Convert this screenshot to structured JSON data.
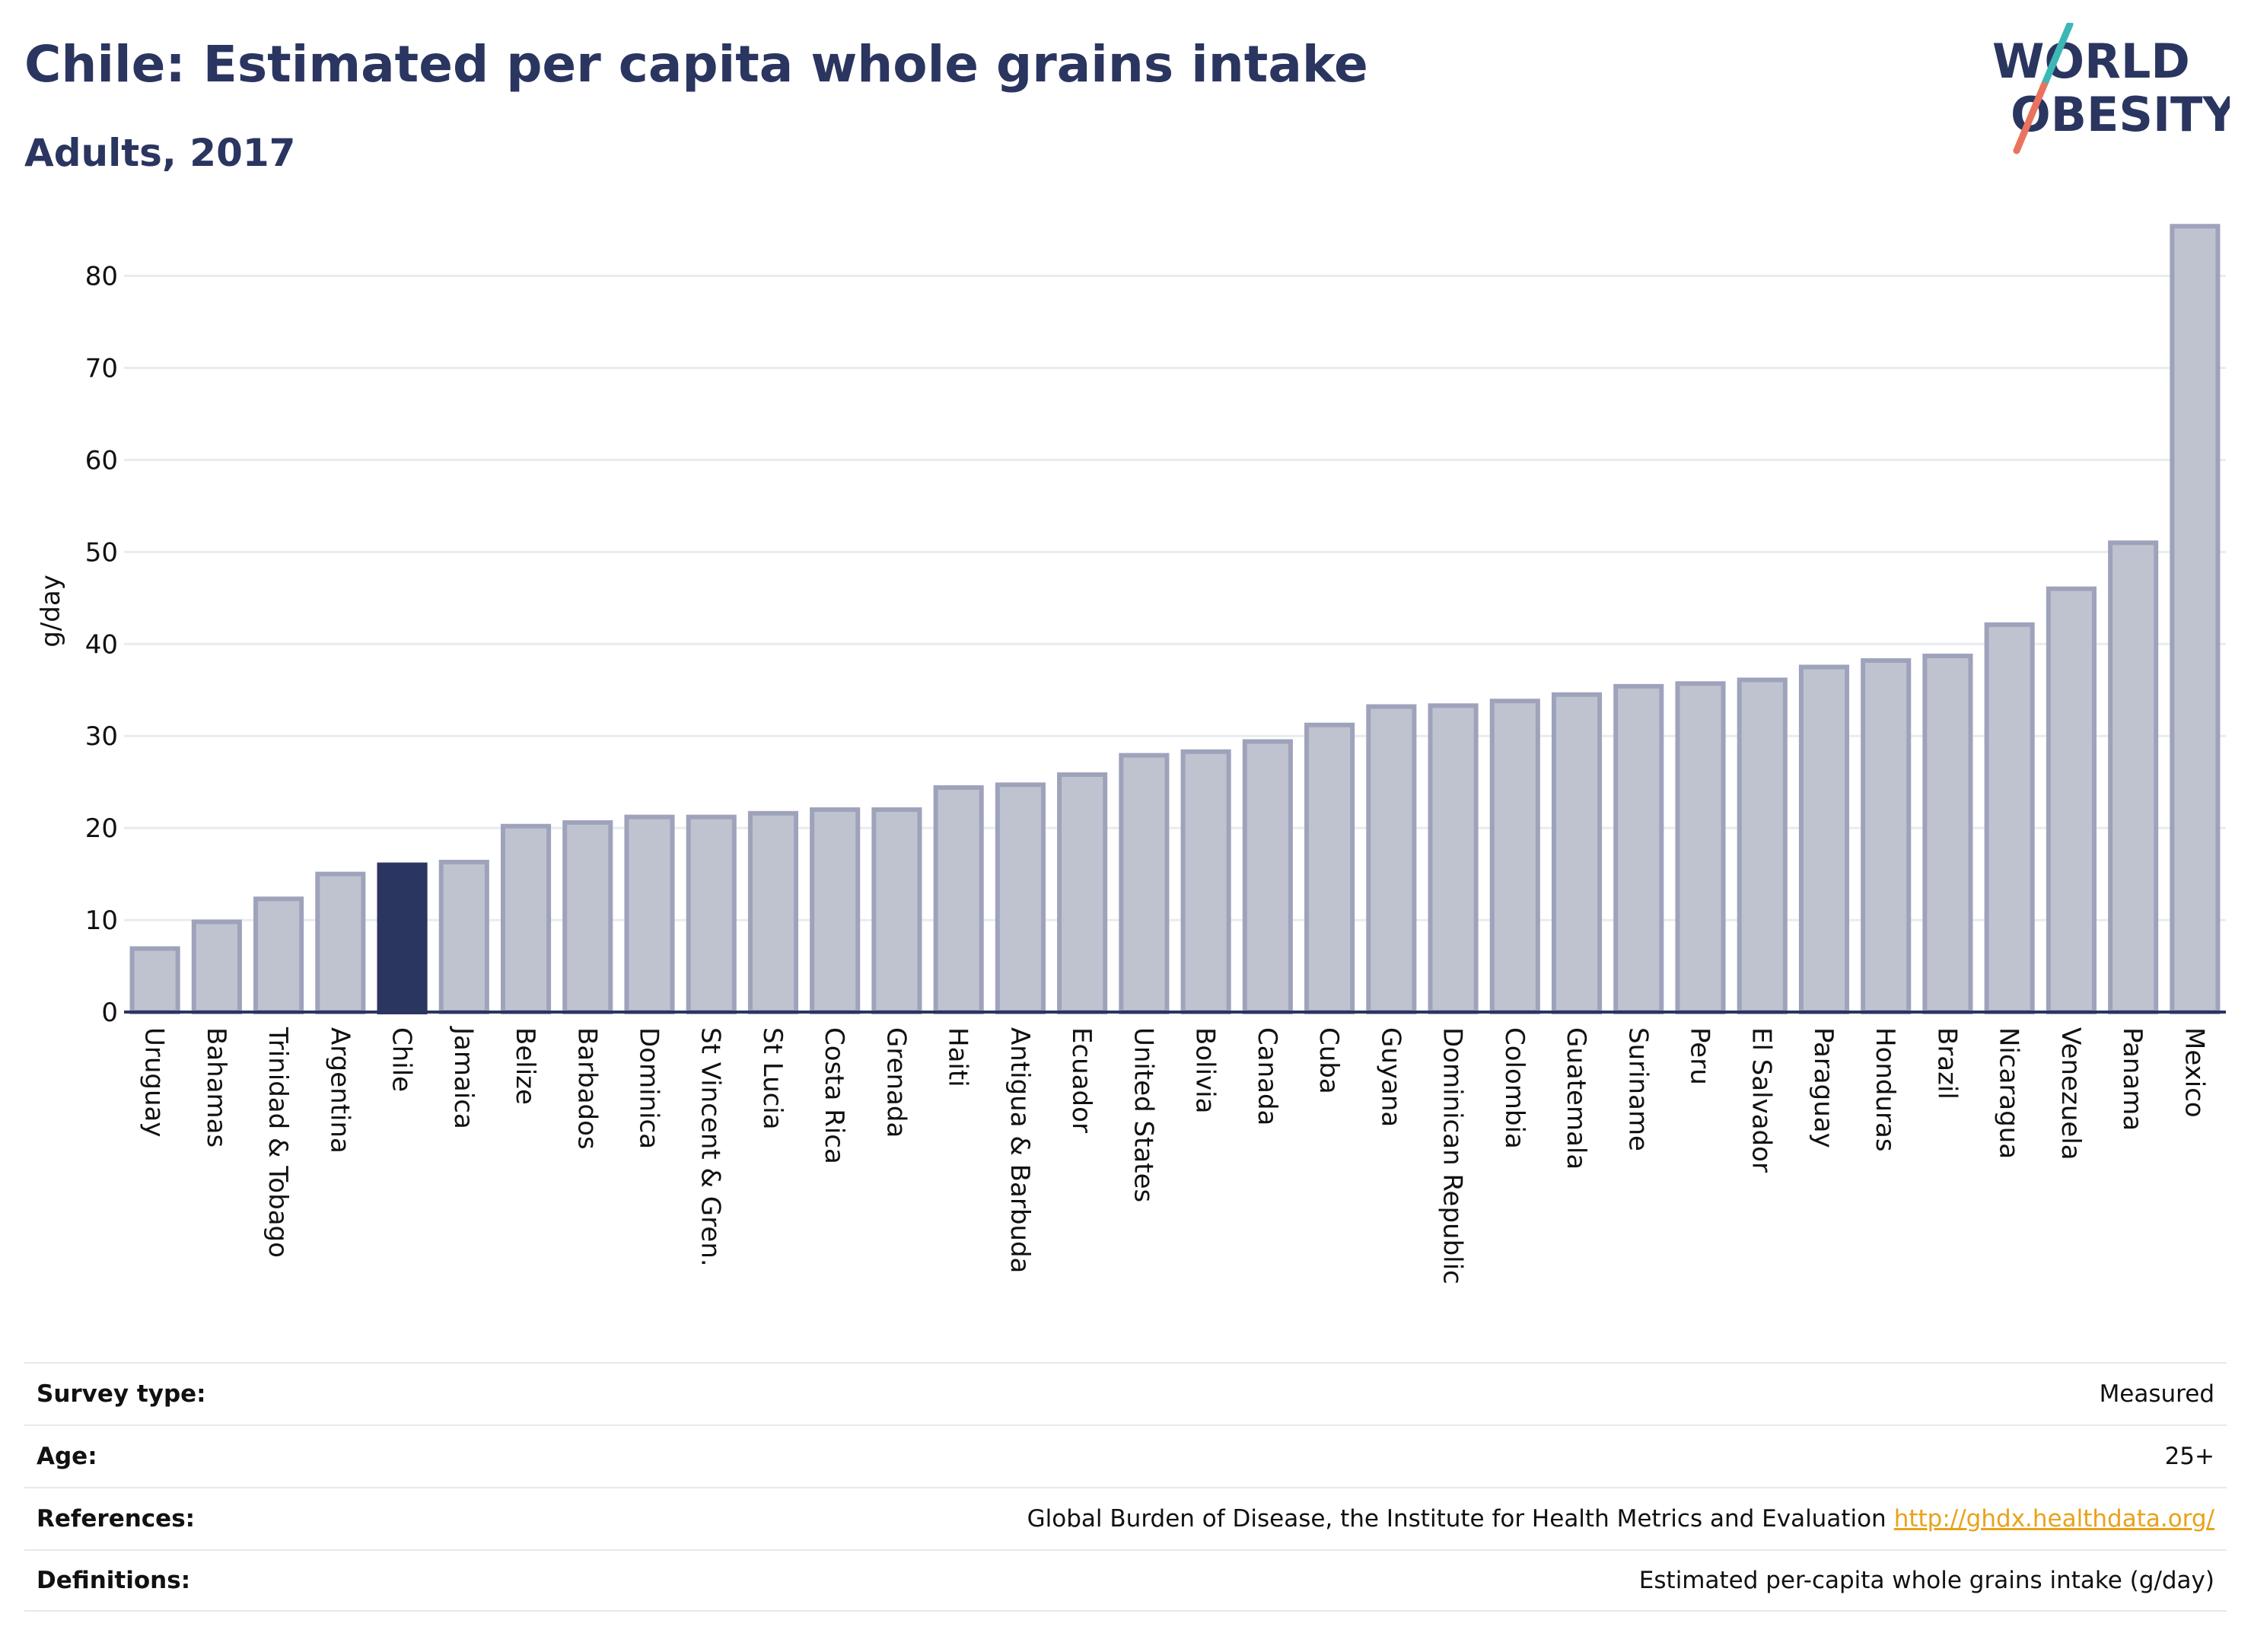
{
  "header": {
    "title": "Chile: Estimated per capita whole grains intake",
    "subtitle": "Adults, 2017"
  },
  "logo": {
    "line1": "WORLD",
    "line2": "OBESITY",
    "colors": {
      "text": "#2a3560",
      "slash_top": "#3bb8b5",
      "slash_bottom": "#e9735f"
    }
  },
  "chart_data": {
    "type": "bar",
    "ylabel": "g/day",
    "xlabel": "",
    "ylim": [
      0,
      86
    ],
    "yticks": [
      0,
      10,
      20,
      30,
      40,
      50,
      60,
      70,
      80
    ],
    "grid": "horizontal",
    "highlight": "Chile",
    "colors": {
      "bar": "#bfc3d0",
      "bar_border": "#9ea3bb",
      "highlight": "#2a3560",
      "grid": "#e9ebef",
      "axis": "#2a3560"
    },
    "categories": [
      "Uruguay",
      "Bahamas",
      "Trinidad & Tobago",
      "Argentina",
      "Chile",
      "Jamaica",
      "Belize",
      "Barbados",
      "Dominica",
      "St Vincent & Gren.",
      "St Lucia",
      "Costa Rica",
      "Grenada",
      "Haiti",
      "Antigua & Barbuda",
      "Ecuador",
      "United States",
      "Bolivia",
      "Canada",
      "Cuba",
      "Guyana",
      "Dominican Republic",
      "Colombia",
      "Guatemala",
      "Suriname",
      "Peru",
      "El Salvador",
      "Paraguay",
      "Honduras",
      "Brazil",
      "Nicaragua",
      "Venezuela",
      "Panama",
      "Mexico"
    ],
    "values": [
      6.9,
      9.8,
      12.3,
      15.0,
      16.0,
      16.3,
      20.2,
      20.6,
      21.2,
      21.2,
      21.6,
      22.0,
      22.0,
      24.4,
      24.7,
      25.8,
      27.9,
      28.3,
      29.4,
      31.2,
      33.2,
      33.3,
      33.8,
      34.5,
      35.4,
      35.7,
      36.1,
      37.5,
      38.2,
      38.7,
      42.1,
      46.0,
      51.0,
      85.4
    ]
  },
  "meta": [
    {
      "label": "Survey type:",
      "value": "Measured"
    },
    {
      "label": "Age:",
      "value": "25+"
    },
    {
      "label": "References:",
      "value": "Global Burden of Disease, the Institute for Health Metrics and Evaluation",
      "link": "http://ghdx.healthdata.org/"
    },
    {
      "label": "Definitions:",
      "value": "Estimated per-capita whole grains intake (g/day)"
    }
  ]
}
